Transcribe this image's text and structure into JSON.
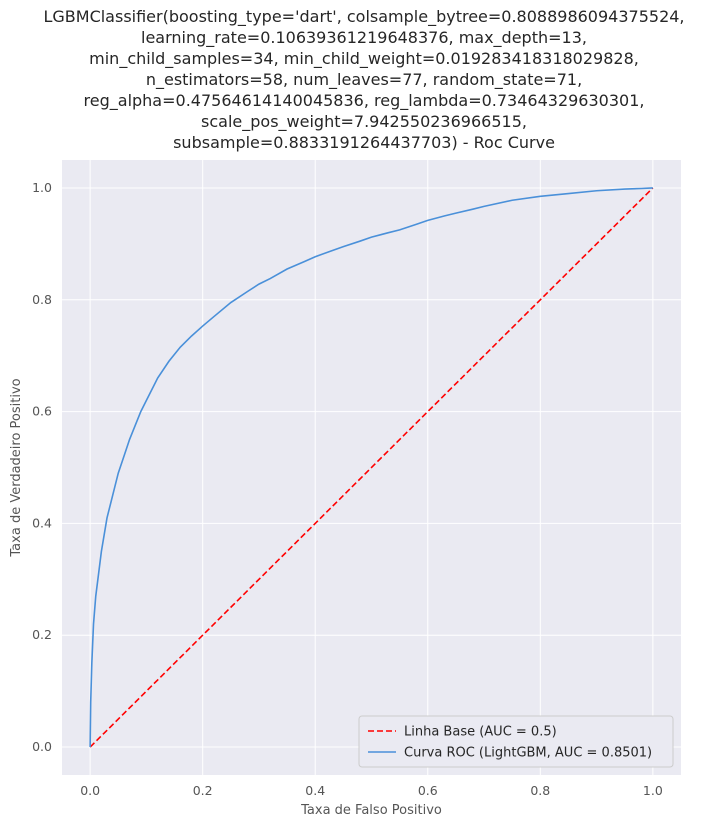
{
  "chart_data": {
    "type": "line",
    "title_lines": [
      "LGBMClassifier(boosting_type='dart', colsample_bytree=0.8088986094375524,",
      "learning_rate=0.10639361219648376, max_depth=13,",
      "min_child_samples=34, min_child_weight=0.019283418318029828,",
      "n_estimators=58, num_leaves=77, random_state=71,",
      "reg_alpha=0.47564614140045836, reg_lambda=0.73464329630301,",
      "scale_pos_weight=7.942550236966515,",
      "subsample=0.8833191264437703) - Roc Curve"
    ],
    "xlabel": "Taxa de Falso Positivo",
    "ylabel": "Taxa de Verdadeiro Positivo",
    "xlim": [
      -0.05,
      1.05
    ],
    "ylim": [
      -0.05,
      1.05
    ],
    "xticks": [
      0.0,
      0.2,
      0.4,
      0.6,
      0.8,
      1.0
    ],
    "yticks": [
      0.0,
      0.2,
      0.4,
      0.6,
      0.8,
      1.0
    ],
    "xtick_labels": [
      "0.0",
      "0.2",
      "0.4",
      "0.6",
      "0.8",
      "1.0"
    ],
    "ytick_labels": [
      "0.0",
      "0.2",
      "0.4",
      "0.6",
      "0.8",
      "1.0"
    ],
    "grid": true,
    "legend_position": "bottom-right",
    "series": [
      {
        "name": "Linha Base (AUC = 0.5)",
        "color": "#ff0000",
        "style": "dashed",
        "x": [
          0.0,
          1.0
        ],
        "y": [
          0.0,
          1.0
        ]
      },
      {
        "name": "Curva ROC (LightGBM, AUC = 0.8501)",
        "color": "#4a90d9",
        "style": "solid",
        "x": [
          0.0,
          0.001,
          0.003,
          0.006,
          0.01,
          0.015,
          0.02,
          0.03,
          0.04,
          0.05,
          0.06,
          0.07,
          0.08,
          0.09,
          0.1,
          0.12,
          0.14,
          0.16,
          0.18,
          0.2,
          0.22,
          0.25,
          0.28,
          0.3,
          0.32,
          0.35,
          0.38,
          0.4,
          0.43,
          0.45,
          0.48,
          0.5,
          0.53,
          0.55,
          0.58,
          0.6,
          0.63,
          0.65,
          0.68,
          0.7,
          0.75,
          0.8,
          0.85,
          0.9,
          0.95,
          0.98,
          1.0
        ],
        "y": [
          0.0,
          0.08,
          0.15,
          0.22,
          0.27,
          0.31,
          0.35,
          0.41,
          0.45,
          0.49,
          0.52,
          0.55,
          0.575,
          0.6,
          0.62,
          0.66,
          0.69,
          0.715,
          0.735,
          0.753,
          0.77,
          0.795,
          0.815,
          0.828,
          0.838,
          0.855,
          0.868,
          0.877,
          0.888,
          0.895,
          0.905,
          0.912,
          0.92,
          0.925,
          0.935,
          0.942,
          0.95,
          0.955,
          0.962,
          0.967,
          0.978,
          0.985,
          0.99,
          0.995,
          0.998,
          0.999,
          1.0
        ]
      }
    ]
  }
}
